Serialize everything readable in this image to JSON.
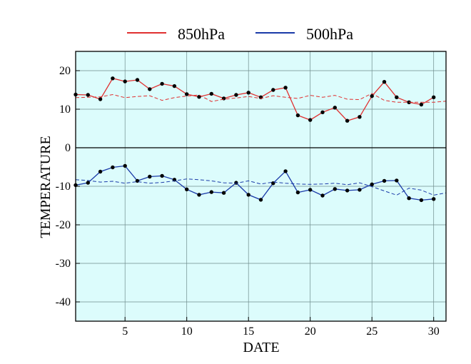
{
  "chart_data": {
    "type": "line",
    "xlabel": "DATE",
    "ylabel": "TEMPERATURE",
    "xlim": [
      1,
      31
    ],
    "ylim": [
      -45,
      25
    ],
    "x_ticks": [
      5,
      10,
      15,
      20,
      25,
      30
    ],
    "y_ticks": [
      20,
      10,
      0,
      -10,
      -20,
      -30,
      -40
    ],
    "grid": true,
    "background": "#dcfcfc",
    "legend": {
      "placement": "top-center",
      "entries": [
        {
          "label": "850hPa",
          "color": "#e03030"
        },
        {
          "label": "500hPa",
          "color": "#1a3aa8"
        }
      ]
    },
    "x": [
      1,
      2,
      3,
      4,
      5,
      6,
      7,
      8,
      9,
      10,
      11,
      12,
      13,
      14,
      15,
      16,
      17,
      18,
      19,
      20,
      21,
      22,
      23,
      24,
      25,
      26,
      27,
      28,
      29,
      30,
      31
    ],
    "series": [
      {
        "name": "850hPa",
        "style": "solid",
        "markers": true,
        "color": "#e03030",
        "values": [
          13.8,
          13.7,
          12.6,
          18.0,
          17.2,
          17.6,
          15.2,
          16.6,
          16.0,
          13.9,
          13.2,
          14.0,
          12.8,
          13.7,
          14.3,
          13.1,
          15.0,
          15.6,
          8.4,
          7.2,
          9.2,
          10.4,
          7.0,
          8.0,
          13.4,
          17.1,
          13.1,
          11.8,
          11.2,
          13.1,
          null
        ]
      },
      {
        "name": "",
        "style": "dashed",
        "markers": false,
        "color": "#e03030",
        "values": [
          13.0,
          13.1,
          13.2,
          13.8,
          13.0,
          13.3,
          13.5,
          12.3,
          13.0,
          13.4,
          13.7,
          12.0,
          12.6,
          12.9,
          13.3,
          12.8,
          13.5,
          13.1,
          12.8,
          13.6,
          13.1,
          13.6,
          12.6,
          12.5,
          14.1,
          12.3,
          11.8,
          11.8,
          11.8,
          11.8,
          12.1
        ]
      },
      {
        "name": "500hPa",
        "style": "solid",
        "markers": true,
        "color": "#1a3aa8",
        "values": [
          -9.7,
          -9.1,
          -6.2,
          -5.1,
          -4.7,
          -8.6,
          -7.5,
          -7.3,
          -8.3,
          -10.8,
          -12.2,
          -11.5,
          -11.7,
          -9.1,
          -12.2,
          -13.5,
          -9.2,
          -6.1,
          -11.6,
          -10.9,
          -12.4,
          -10.7,
          -11.1,
          -10.9,
          -9.5,
          -8.6,
          -8.5,
          -13.1,
          -13.6,
          -13.3,
          null
        ]
      },
      {
        "name": "",
        "style": "dashed",
        "markers": false,
        "color": "#1a3aa8",
        "values": [
          -8.3,
          -8.5,
          -8.9,
          -8.7,
          -9.2,
          -8.8,
          -9.2,
          -9.0,
          -8.6,
          -8.1,
          -8.3,
          -8.6,
          -9.1,
          -9.2,
          -8.6,
          -9.4,
          -8.9,
          -9.2,
          -9.4,
          -9.5,
          -9.4,
          -9.2,
          -9.6,
          -9.1,
          -10.1,
          -11.2,
          -12.3,
          -10.5,
          -11.0,
          -12.3,
          -11.7
        ]
      }
    ]
  }
}
